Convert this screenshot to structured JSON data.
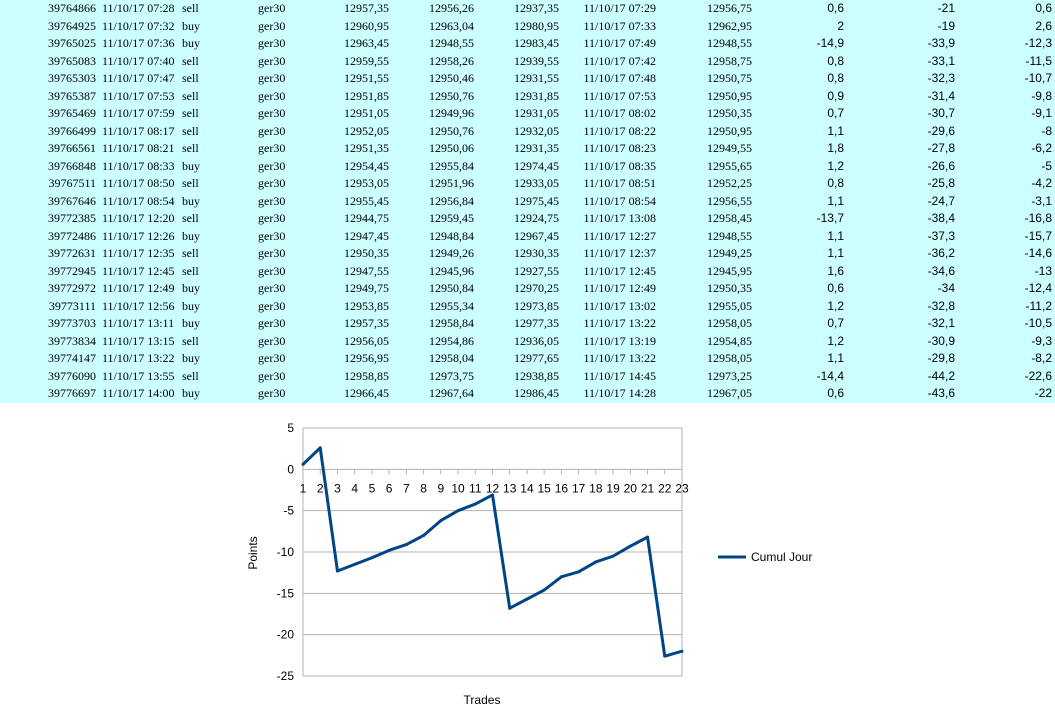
{
  "table": {
    "rows": [
      [
        "39764866",
        "11/10/17 07:28",
        "sell",
        "ger30",
        "12957,35",
        "12956,26",
        "12937,35",
        "11/10/17 07:29",
        "12956,75",
        "0,6",
        "-21",
        "0,6"
      ],
      [
        "39764925",
        "11/10/17 07:32",
        "buy",
        "ger30",
        "12960,95",
        "12963,04",
        "12980,95",
        "11/10/17 07:33",
        "12962,95",
        "2",
        "-19",
        "2,6"
      ],
      [
        "39765025",
        "11/10/17 07:36",
        "buy",
        "ger30",
        "12963,45",
        "12948,55",
        "12983,45",
        "11/10/17 07:49",
        "12948,55",
        "-14,9",
        "-33,9",
        "-12,3"
      ],
      [
        "39765083",
        "11/10/17 07:40",
        "sell",
        "ger30",
        "12959,55",
        "12958,26",
        "12939,55",
        "11/10/17 07:42",
        "12958,75",
        "0,8",
        "-33,1",
        "-11,5"
      ],
      [
        "39765303",
        "11/10/17 07:47",
        "sell",
        "ger30",
        "12951,55",
        "12950,46",
        "12931,55",
        "11/10/17 07:48",
        "12950,75",
        "0,8",
        "-32,3",
        "-10,7"
      ],
      [
        "39765387",
        "11/10/17 07:53",
        "sell",
        "ger30",
        "12951,85",
        "12950,76",
        "12931,85",
        "11/10/17 07:53",
        "12950,95",
        "0,9",
        "-31,4",
        "-9,8"
      ],
      [
        "39765469",
        "11/10/17 07:59",
        "sell",
        "ger30",
        "12951,05",
        "12949,96",
        "12931,05",
        "11/10/17 08:02",
        "12950,35",
        "0,7",
        "-30,7",
        "-9,1"
      ],
      [
        "39766499",
        "11/10/17 08:17",
        "sell",
        "ger30",
        "12952,05",
        "12950,76",
        "12932,05",
        "11/10/17 08:22",
        "12950,95",
        "1,1",
        "-29,6",
        "-8"
      ],
      [
        "39766561",
        "11/10/17 08:21",
        "sell",
        "ger30",
        "12951,35",
        "12950,06",
        "12931,35",
        "11/10/17 08:23",
        "12949,55",
        "1,8",
        "-27,8",
        "-6,2"
      ],
      [
        "39766848",
        "11/10/17 08:33",
        "buy",
        "ger30",
        "12954,45",
        "12955,84",
        "12974,45",
        "11/10/17 08:35",
        "12955,65",
        "1,2",
        "-26,6",
        "-5"
      ],
      [
        "39767511",
        "11/10/17 08:50",
        "sell",
        "ger30",
        "12953,05",
        "12951,96",
        "12933,05",
        "11/10/17 08:51",
        "12952,25",
        "0,8",
        "-25,8",
        "-4,2"
      ],
      [
        "39767646",
        "11/10/17 08:54",
        "buy",
        "ger30",
        "12955,45",
        "12956,84",
        "12975,45",
        "11/10/17 08:54",
        "12956,55",
        "1,1",
        "-24,7",
        "-3,1"
      ],
      [
        "39772385",
        "11/10/17 12:20",
        "sell",
        "ger30",
        "12944,75",
        "12959,45",
        "12924,75",
        "11/10/17 13:08",
        "12958,45",
        "-13,7",
        "-38,4",
        "-16,8"
      ],
      [
        "39772486",
        "11/10/17 12:26",
        "buy",
        "ger30",
        "12947,45",
        "12948,84",
        "12967,45",
        "11/10/17 12:27",
        "12948,55",
        "1,1",
        "-37,3",
        "-15,7"
      ],
      [
        "39772631",
        "11/10/17 12:35",
        "sell",
        "ger30",
        "12950,35",
        "12949,26",
        "12930,35",
        "11/10/17 12:37",
        "12949,25",
        "1,1",
        "-36,2",
        "-14,6"
      ],
      [
        "39772945",
        "11/10/17 12:45",
        "sell",
        "ger30",
        "12947,55",
        "12945,96",
        "12927,55",
        "11/10/17 12:45",
        "12945,95",
        "1,6",
        "-34,6",
        "-13"
      ],
      [
        "39772972",
        "11/10/17 12:49",
        "buy",
        "ger30",
        "12949,75",
        "12950,84",
        "12970,25",
        "11/10/17 12:49",
        "12950,35",
        "0,6",
        "-34",
        "-12,4"
      ],
      [
        "39773111",
        "11/10/17 12:56",
        "buy",
        "ger30",
        "12953,85",
        "12955,34",
        "12973,85",
        "11/10/17 13:02",
        "12955,05",
        "1,2",
        "-32,8",
        "-11,2"
      ],
      [
        "39773703",
        "11/10/17 13:11",
        "buy",
        "ger30",
        "12957,35",
        "12958,84",
        "12977,35",
        "11/10/17 13:22",
        "12958,05",
        "0,7",
        "-32,1",
        "-10,5"
      ],
      [
        "39773834",
        "11/10/17 13:15",
        "sell",
        "ger30",
        "12956,05",
        "12954,86",
        "12936,05",
        "11/10/17 13:19",
        "12954,85",
        "1,2",
        "-30,9",
        "-9,3"
      ],
      [
        "39774147",
        "11/10/17 13:22",
        "buy",
        "ger30",
        "12956,95",
        "12958,04",
        "12977,65",
        "11/10/17 13:22",
        "12958,05",
        "1,1",
        "-29,8",
        "-8,2"
      ],
      [
        "39776090",
        "11/10/17 13:55",
        "sell",
        "ger30",
        "12958,85",
        "12973,75",
        "12938,85",
        "11/10/17 14:45",
        "12973,25",
        "-14,4",
        "-44,2",
        "-22,6"
      ],
      [
        "39776697",
        "11/10/17 14:00",
        "buy",
        "ger30",
        "12966,45",
        "12967,64",
        "12986,45",
        "11/10/17 14:28",
        "12967,05",
        "0,6",
        "-43,6",
        "-22"
      ]
    ]
  },
  "chart_data": {
    "type": "line",
    "title": "",
    "xlabel": "Trades",
    "ylabel": "Points",
    "categories": [
      "1",
      "2",
      "3",
      "4",
      "5",
      "6",
      "7",
      "8",
      "9",
      "10",
      "11",
      "12",
      "13",
      "14",
      "15",
      "16",
      "17",
      "18",
      "19",
      "20",
      "21",
      "22",
      "23"
    ],
    "series": [
      {
        "name": "Cumul Jour",
        "color": "#004586",
        "values": [
          0.6,
          2.6,
          -12.3,
          -11.5,
          -10.7,
          -9.8,
          -9.1,
          -8,
          -6.2,
          -5,
          -4.2,
          -3.1,
          -16.8,
          -15.7,
          -14.6,
          -13,
          -12.4,
          -11.2,
          -10.5,
          -9.3,
          -8.2,
          -22.6,
          -22
        ]
      }
    ],
    "ylim": [
      -25,
      5
    ],
    "yticks": [
      "5",
      "0",
      "-5",
      "-10",
      "-15",
      "-20",
      "-25"
    ],
    "grid": true,
    "legend": "right"
  }
}
